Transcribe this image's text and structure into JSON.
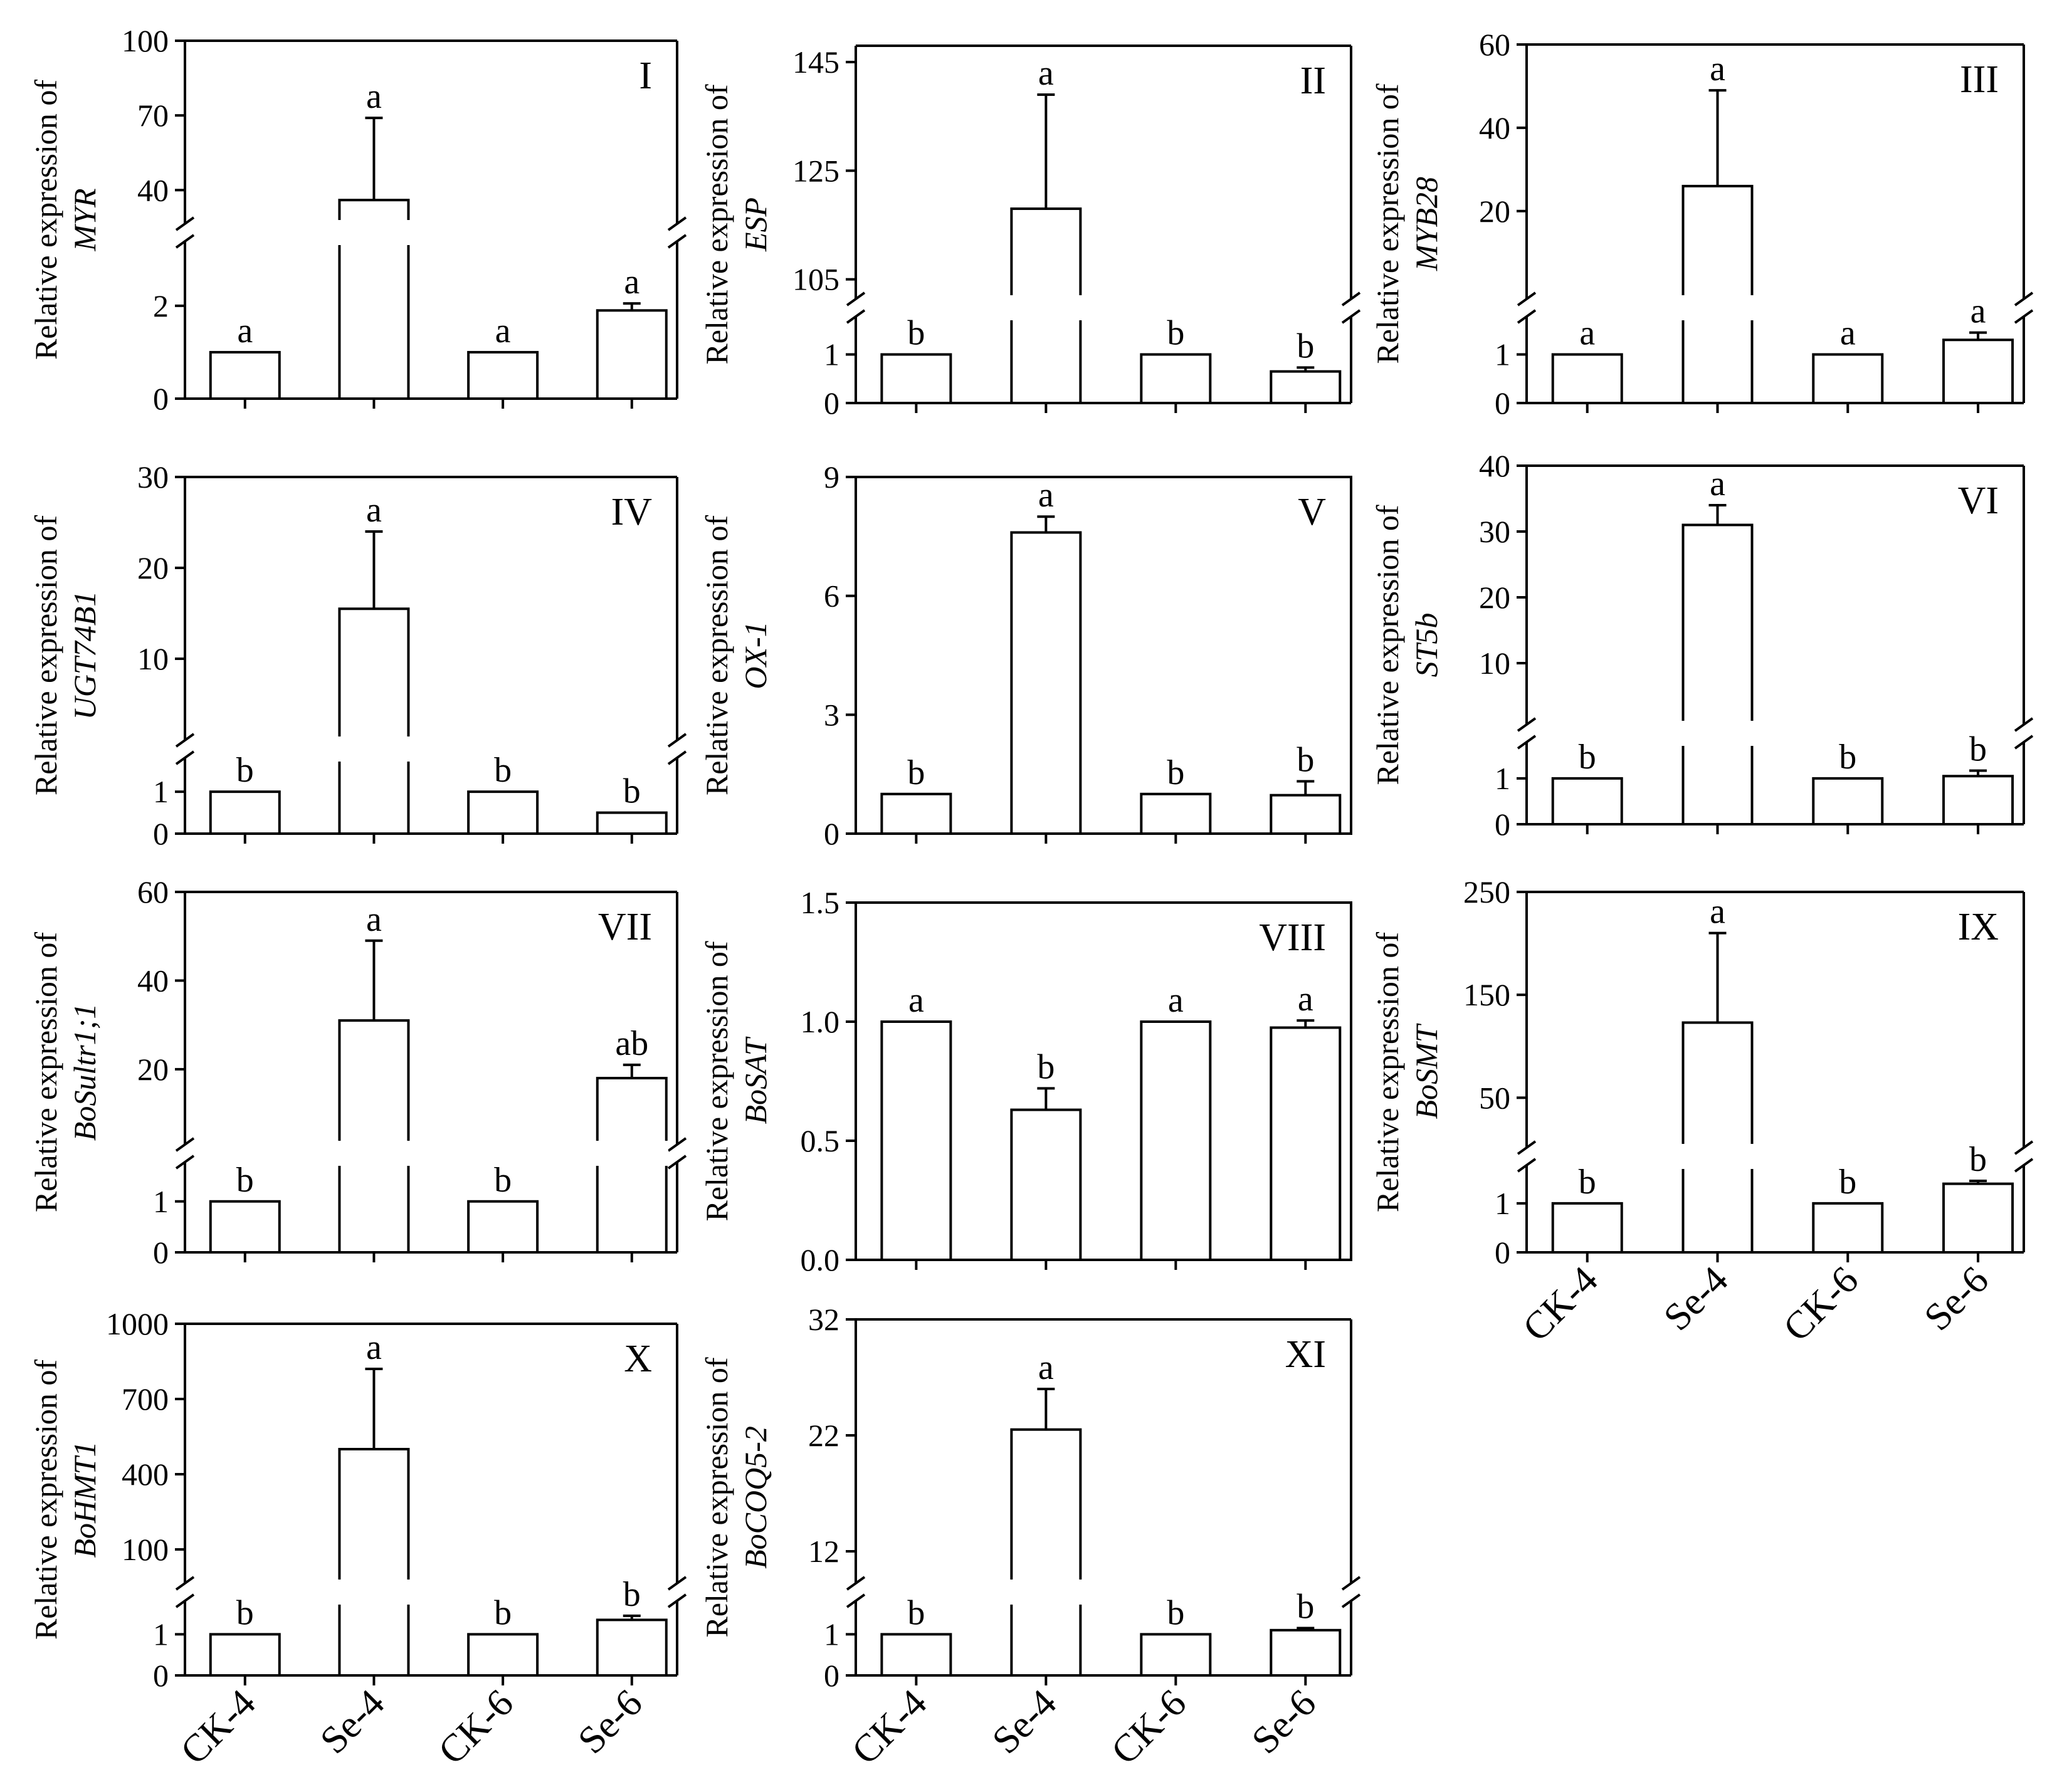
{
  "figure": {
    "categories": [
      "CK-4",
      "Se-4",
      "CK-6",
      "Se-6"
    ],
    "ylabel_prefix": "Relative expression of"
  },
  "chart_data": [
    {
      "id": "I",
      "type": "bar",
      "panel_label": "I",
      "ylabel_gene": "MYR",
      "categories": [
        "CK-4",
        "Se-4",
        "CK-6",
        "Se-6"
      ],
      "values": [
        1,
        36,
        1,
        1.9
      ],
      "errors": [
        0,
        33,
        0,
        0.15
      ],
      "letters": [
        "a",
        "a",
        "a",
        "a"
      ],
      "broken_axis": true,
      "lower_ylim": [
        0,
        3.2
      ],
      "lower_ticks": [
        "0",
        "2"
      ],
      "upper_ylim": [
        30,
        100
      ],
      "upper_ticks": [
        "40",
        "70",
        "100"
      ]
    },
    {
      "id": "II",
      "type": "bar",
      "panel_label": "II",
      "ylabel_gene": "ESP",
      "categories": [
        "CK-4",
        "Se-4",
        "CK-6",
        "Se-6"
      ],
      "values": [
        1,
        118,
        1,
        0.65
      ],
      "errors": [
        0,
        21,
        0,
        0.08
      ],
      "letters": [
        "b",
        "a",
        "b",
        "b"
      ],
      "broken_axis": true,
      "lower_ylim": [
        0,
        1.6
      ],
      "lower_ticks": [
        "0",
        "1"
      ],
      "upper_ylim": [
        103,
        148
      ],
      "upper_ticks": [
        "105",
        "125",
        "145"
      ]
    },
    {
      "id": "III",
      "type": "bar",
      "panel_label": "III",
      "ylabel_gene": "MYB28",
      "categories": [
        "CK-4",
        "Se-4",
        "CK-6",
        "Se-6"
      ],
      "values": [
        1,
        26,
        1,
        1.3
      ],
      "errors": [
        0,
        23,
        0,
        0.15
      ],
      "letters": [
        "a",
        "a",
        "a",
        "a"
      ],
      "broken_axis": true,
      "lower_ylim": [
        0,
        1.6
      ],
      "lower_ticks": [
        "0",
        "1"
      ],
      "upper_ylim": [
        1,
        60
      ],
      "upper_ticks": [
        "20",
        "40",
        "60"
      ]
    },
    {
      "id": "IV",
      "type": "bar",
      "panel_label": "IV",
      "ylabel_gene": "UGT74B1",
      "categories": [
        "CK-4",
        "Se-4",
        "CK-6",
        "Se-6"
      ],
      "values": [
        1,
        15.5,
        1,
        0.5
      ],
      "errors": [
        0,
        8.5,
        0,
        0
      ],
      "letters": [
        "b",
        "a",
        "b",
        "b"
      ],
      "broken_axis": true,
      "lower_ylim": [
        0,
        1.6
      ],
      "lower_ticks": [
        "0",
        "1"
      ],
      "upper_ylim": [
        2,
        30
      ],
      "upper_ticks": [
        "10",
        "20",
        "30"
      ]
    },
    {
      "id": "V",
      "type": "bar",
      "panel_label": "V",
      "ylabel_gene": "OX-1",
      "categories": [
        "CK-4",
        "Se-4",
        "CK-6",
        "Se-6"
      ],
      "values": [
        1,
        7.6,
        1,
        0.97
      ],
      "errors": [
        0,
        0.4,
        0,
        0.35
      ],
      "letters": [
        "b",
        "a",
        "b",
        "b"
      ],
      "broken_axis": false,
      "ylim": [
        0,
        9
      ],
      "ticks": [
        "0",
        "3",
        "6",
        "9"
      ]
    },
    {
      "id": "VI",
      "type": "bar",
      "panel_label": "VI",
      "ylabel_gene": "ST5b",
      "categories": [
        "CK-4",
        "Se-4",
        "CK-6",
        "Se-6"
      ],
      "values": [
        1,
        31,
        1,
        1.05
      ],
      "errors": [
        0,
        3,
        0,
        0.12
      ],
      "letters": [
        "b",
        "a",
        "b",
        "b"
      ],
      "broken_axis": true,
      "lower_ylim": [
        0,
        1.6
      ],
      "lower_ticks": [
        "0",
        "1"
      ],
      "upper_ylim": [
        2,
        40
      ],
      "upper_ticks": [
        "10",
        "20",
        "30",
        "40"
      ]
    },
    {
      "id": "VII",
      "type": "bar",
      "panel_label": "VII",
      "ylabel_gene": "BoSultr1;1",
      "categories": [
        "CK-4",
        "Se-4",
        "CK-6",
        "Se-6"
      ],
      "values": [
        1,
        31,
        1,
        18
      ],
      "errors": [
        0,
        18,
        0,
        3
      ],
      "letters": [
        "b",
        "a",
        "b",
        "ab"
      ],
      "broken_axis": true,
      "lower_ylim": [
        0,
        1.6
      ],
      "lower_ticks": [
        "0",
        "1"
      ],
      "upper_ylim": [
        5,
        60
      ],
      "upper_ticks": [
        "20",
        "40",
        "60"
      ]
    },
    {
      "id": "VIII",
      "type": "bar",
      "panel_label": "VIII",
      "ylabel_gene": "BoSAT",
      "categories": [
        "CK-4",
        "Se-4",
        "CK-6",
        "Se-6"
      ],
      "values": [
        1.0,
        0.63,
        1.0,
        0.975
      ],
      "errors": [
        0,
        0.09,
        0,
        0.03
      ],
      "letters": [
        "a",
        "b",
        "a",
        "a"
      ],
      "broken_axis": false,
      "ylim": [
        0,
        1.5
      ],
      "ticks": [
        "0.0",
        "0.5",
        "1.0",
        "1.5"
      ]
    },
    {
      "id": "IX",
      "type": "bar",
      "panel_label": "IX",
      "ylabel_gene": "BoSMT",
      "categories": [
        "CK-4",
        "Se-4",
        "CK-6",
        "Se-6"
      ],
      "values": [
        1,
        123,
        1,
        1.4
      ],
      "errors": [
        0,
        87,
        0,
        0.06
      ],
      "letters": [
        "b",
        "a",
        "b",
        "b"
      ],
      "broken_axis": true,
      "lower_ylim": [
        0,
        1.6
      ],
      "lower_ticks": [
        "0",
        "1"
      ],
      "upper_ylim": [
        10,
        250
      ],
      "upper_ticks": [
        "50",
        "150",
        "250"
      ]
    },
    {
      "id": "X",
      "type": "bar",
      "panel_label": "X",
      "ylabel_gene": "BoHMT1",
      "categories": [
        "CK-4",
        "Se-4",
        "CK-6",
        "Se-6"
      ],
      "values": [
        1,
        500,
        1,
        1.35
      ],
      "errors": [
        0,
        320,
        0,
        0.1
      ],
      "letters": [
        "b",
        "a",
        "b",
        "b"
      ],
      "broken_axis": true,
      "lower_ylim": [
        0,
        1.6
      ],
      "lower_ticks": [
        "0",
        "1"
      ],
      "upper_ylim": [
        0,
        1000
      ],
      "upper_ticks": [
        "100",
        "400",
        "700",
        "1000"
      ]
    },
    {
      "id": "XI",
      "type": "bar",
      "panel_label": "XI",
      "ylabel_gene": "BoCOQ5-2",
      "categories": [
        "CK-4",
        "Se-4",
        "CK-6",
        "Se-6"
      ],
      "values": [
        1,
        22.5,
        1,
        1.1
      ],
      "errors": [
        0,
        3.5,
        0,
        0.05
      ],
      "letters": [
        "b",
        "a",
        "b",
        "b"
      ],
      "broken_axis": true,
      "lower_ylim": [
        0,
        1.6
      ],
      "lower_ticks": [
        "0",
        "1"
      ],
      "upper_ylim": [
        10,
        32
      ],
      "upper_ticks": [
        "12",
        "22",
        "32"
      ]
    }
  ]
}
